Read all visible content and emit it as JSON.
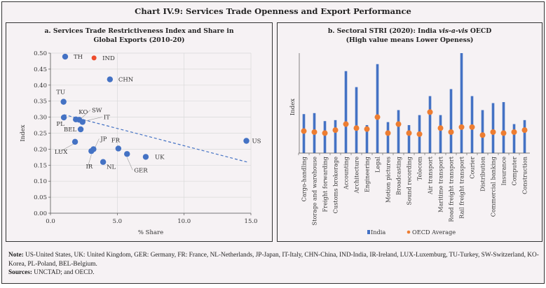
{
  "title": "Chart IV.9: Services Trade Openness and Export Performance",
  "colors": {
    "blue": "#4472c4",
    "red": "#ee4c2c",
    "orange": "#ed7d31",
    "background": "#f6f2f4"
  },
  "notes": {
    "note_label": "Note:",
    "note_text": "US-United States, UK: United Kingdom, GER: Germany, FR: France, NL-Netherlands, JP-Japan, IT-Italy, CHN-China, IND-India, IR-Ireland, LUX-Luxemburg, TU-Turkey, SW-Switzerland, KO-Korea,  PL-Poland, BEL-Belgium.",
    "sources_label": "Sources:",
    "sources_text": "UNCTAD; and OECD."
  },
  "chart_data": [
    {
      "type": "scatter",
      "title": "a. Services Trade Restrictiveness Index and Share in Global Exports (2010-20)",
      "title_line1": "a. Services Trade Restrictiveness Index and Share in",
      "title_line2": "Global Exports (2010-20)",
      "xlabel": "% Share",
      "ylabel": "Index",
      "xlim": [
        0,
        15
      ],
      "ylim": [
        0,
        0.5
      ],
      "xticks": [
        "0.0",
        "5.0",
        "10.0",
        "15.0"
      ],
      "yticks": [
        "0.00",
        "0.05",
        "0.10",
        "0.15",
        "0.20",
        "0.25",
        "0.30",
        "0.35",
        "0.40",
        "0.45",
        "0.50"
      ],
      "grid": true,
      "points": [
        {
          "label": "TH",
          "x": 1.1,
          "y": 0.489,
          "color": "#4472c4"
        },
        {
          "label": "IND",
          "x": 3.26,
          "y": 0.485,
          "color": "#ee4c2c"
        },
        {
          "label": "CHN",
          "x": 4.45,
          "y": 0.418,
          "color": "#4472c4"
        },
        {
          "label": "TU",
          "x": 0.98,
          "y": 0.348,
          "color": "#4472c4"
        },
        {
          "label": "PL",
          "x": 1.0,
          "y": 0.299,
          "color": "#4472c4"
        },
        {
          "label": "KO",
          "x": 1.9,
          "y": 0.293,
          "color": "#4472c4"
        },
        {
          "label": "SW",
          "x": 2.15,
          "y": 0.292,
          "color": "#4472c4"
        },
        {
          "label": "IT",
          "x": 2.4,
          "y": 0.285,
          "color": "#4472c4"
        },
        {
          "label": "BEL",
          "x": 2.26,
          "y": 0.262,
          "color": "#4472c4"
        },
        {
          "label": "LUX",
          "x": 1.84,
          "y": 0.223,
          "color": "#4472c4"
        },
        {
          "label": "JP",
          "x": 3.22,
          "y": 0.2,
          "color": "#4472c4"
        },
        {
          "label": "IR",
          "x": 3.06,
          "y": 0.194,
          "color": "#4472c4"
        },
        {
          "label": "NL",
          "x": 3.94,
          "y": 0.16,
          "color": "#4472c4"
        },
        {
          "label": "FR",
          "x": 5.08,
          "y": 0.202,
          "color": "#4472c4"
        },
        {
          "label": "GER",
          "x": 5.73,
          "y": 0.185,
          "color": "#4472c4"
        },
        {
          "label": "UK",
          "x": 7.13,
          "y": 0.176,
          "color": "#4472c4"
        },
        {
          "label": "US",
          "x": 14.66,
          "y": 0.226,
          "color": "#4472c4"
        }
      ],
      "trendline": {
        "style": "dashed",
        "from": [
          1.0,
          0.308
        ],
        "to": [
          14.7,
          0.16
        ]
      }
    },
    {
      "type": "bar",
      "title": "b. Sectoral STRI (2020): India vis-a-vis OECD (High value means Lower Openess)",
      "title_line1_a": "b. Sectoral STRI (2020): India ",
      "title_line1_b": "vis-a-vis",
      "title_line1_c": " OECD",
      "title_line2": "(High value means Lower Openess)",
      "ylabel": "Index",
      "ylim": [
        0,
        1
      ],
      "y_scale_note_hidden": true,
      "legend_position": "bottom",
      "categories": [
        "Cargo-handling",
        "Storage and warehouse",
        "Freight forwarding",
        "Customs brokerage",
        "Accounting",
        "Architecture",
        "Engineering",
        "Legal",
        "Motion pictures",
        "Broadcasting",
        "Sound recording",
        "Telecom",
        "Air transport",
        "Maritime transport",
        "Road freight transport",
        "Rail freight transport",
        "Courier",
        "Distribution",
        "Commercial banking",
        "Insurance",
        "Computer",
        "Construction"
      ],
      "series": [
        {
          "name": "India",
          "kind": "bar",
          "color": "#4472c4",
          "values": [
            0.39,
            0.4,
            0.32,
            0.33,
            0.82,
            0.66,
            0.28,
            0.89,
            0.31,
            0.43,
            0.28,
            0.38,
            0.57,
            0.38,
            0.64,
            1.0,
            0.57,
            0.43,
            0.5,
            0.51,
            0.29,
            0.33
          ]
        },
        {
          "name": "OECD Average",
          "kind": "marker",
          "color": "#ed7d31",
          "values": [
            0.22,
            0.21,
            0.2,
            0.23,
            0.29,
            0.25,
            0.24,
            0.36,
            0.2,
            0.29,
            0.2,
            0.19,
            0.41,
            0.25,
            0.21,
            0.26,
            0.26,
            0.18,
            0.21,
            0.2,
            0.21,
            0.23
          ]
        }
      ]
    }
  ]
}
